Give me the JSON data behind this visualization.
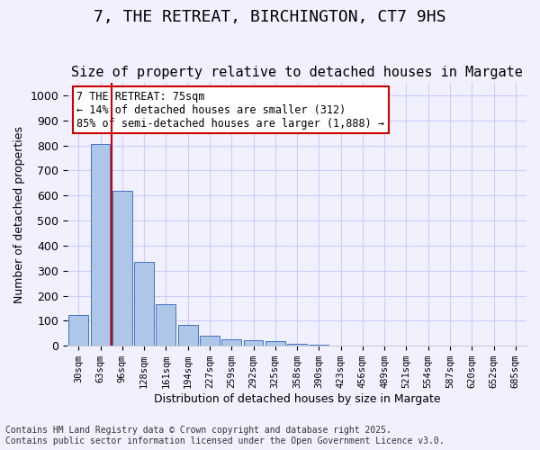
{
  "title": "7, THE RETREAT, BIRCHINGTON, CT7 9HS",
  "subtitle": "Size of property relative to detached houses in Margate",
  "xlabel": "Distribution of detached houses by size in Margate",
  "ylabel": "Number of detached properties",
  "bar_values": [
    122,
    805,
    618,
    335,
    165,
    82,
    40,
    27,
    22,
    17,
    8,
    5,
    0,
    0,
    0,
    0,
    0,
    0,
    0,
    0,
    0
  ],
  "categories": [
    "30sqm",
    "63sqm",
    "96sqm",
    "128sqm",
    "161sqm",
    "194sqm",
    "227sqm",
    "259sqm",
    "292sqm",
    "325sqm",
    "358sqm",
    "390sqm",
    "423sqm",
    "456sqm",
    "489sqm",
    "521sqm",
    "554sqm",
    "587sqm",
    "620sqm",
    "652sqm",
    "685sqm"
  ],
  "bar_color": "#aec6e8",
  "bar_edge_color": "#4472c4",
  "vline_x": 1.5,
  "vline_color": "#cc0000",
  "annotation_text": "7 THE RETREAT: 75sqm\n← 14% of detached houses are smaller (312)\n85% of semi-detached houses are larger (1,888) →",
  "annotation_box_color": "#cc0000",
  "annotation_bg": "#ffffff",
  "ylim": [
    0,
    1050
  ],
  "yticks": [
    0,
    100,
    200,
    300,
    400,
    500,
    600,
    700,
    800,
    900,
    1000
  ],
  "grid_color": "#ccccff",
  "bg_color": "#f0f0ff",
  "footer": "Contains HM Land Registry data © Crown copyright and database right 2025.\nContains public sector information licensed under the Open Government Licence v3.0.",
  "title_fontsize": 13,
  "subtitle_fontsize": 11,
  "annotation_fontsize": 8.5,
  "footer_fontsize": 7
}
